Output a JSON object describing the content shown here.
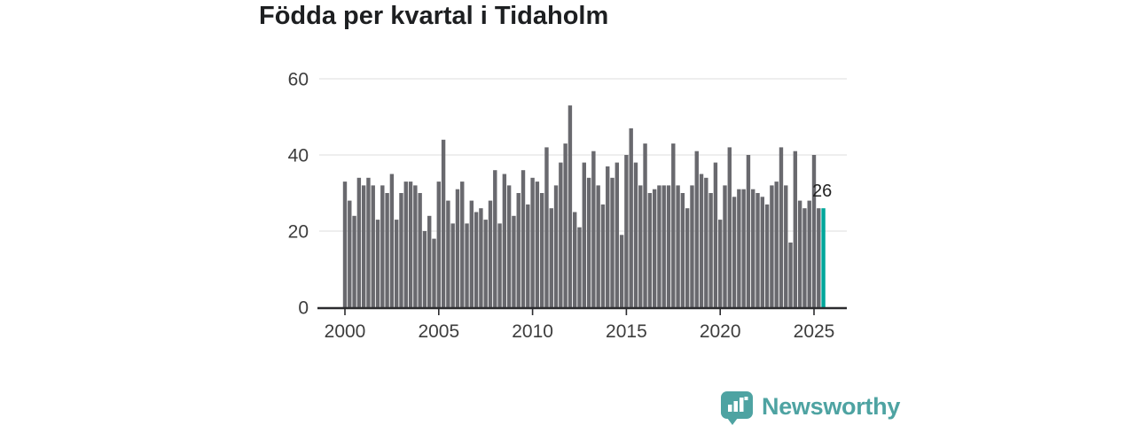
{
  "title": "Födda per kvartal i Tidaholm",
  "annotation": {
    "text": "26"
  },
  "colors": {
    "bar": "#69696e",
    "highlight": "#00a79b",
    "grid": "#e3e3e3",
    "axis": "#2b2b2e",
    "tick_label": "#3d3d3d",
    "annotation": "#232323",
    "logo": "#4ea3a2"
  },
  "chart_data": {
    "type": "bar",
    "title": "Födda per kvartal i Tidaholm",
    "xlabel": "",
    "ylabel": "",
    "ylim": [
      0,
      64
    ],
    "grid": true,
    "legend_position": "none",
    "y_ticks": [
      "0",
      "20",
      "40",
      "60"
    ],
    "x_ticks": [
      "2000",
      "2005",
      "2010",
      "2015",
      "2020",
      "2025"
    ],
    "x_tick_every_n_bars": 20,
    "highlight": {
      "index": 102,
      "label": "26"
    },
    "categories": [
      "2000 K1",
      "2000 K2",
      "2000 K3",
      "2000 K4",
      "2001 K1",
      "2001 K2",
      "2001 K3",
      "2001 K4",
      "2002 K1",
      "2002 K2",
      "2002 K3",
      "2002 K4",
      "2003 K1",
      "2003 K2",
      "2003 K3",
      "2003 K4",
      "2004 K1",
      "2004 K2",
      "2004 K3",
      "2004 K4",
      "2005 K1",
      "2005 K2",
      "2005 K3",
      "2005 K4",
      "2006 K1",
      "2006 K2",
      "2006 K3",
      "2006 K4",
      "2007 K1",
      "2007 K2",
      "2007 K3",
      "2007 K4",
      "2008 K1",
      "2008 K2",
      "2008 K3",
      "2008 K4",
      "2009 K1",
      "2009 K2",
      "2009 K3",
      "2009 K4",
      "2010 K1",
      "2010 K2",
      "2010 K3",
      "2010 K4",
      "2011 K1",
      "2011 K2",
      "2011 K3",
      "2011 K4",
      "2012 K1",
      "2012 K2",
      "2012 K3",
      "2012 K4",
      "2013 K1",
      "2013 K2",
      "2013 K3",
      "2013 K4",
      "2014 K1",
      "2014 K2",
      "2014 K3",
      "2014 K4",
      "2015 K1",
      "2015 K2",
      "2015 K3",
      "2015 K4",
      "2016 K1",
      "2016 K2",
      "2016 K3",
      "2016 K4",
      "2017 K1",
      "2017 K2",
      "2017 K3",
      "2017 K4",
      "2018 K1",
      "2018 K2",
      "2018 K3",
      "2018 K4",
      "2019 K1",
      "2019 K2",
      "2019 K3",
      "2019 K4",
      "2020 K1",
      "2020 K2",
      "2020 K3",
      "2020 K4",
      "2021 K1",
      "2021 K2",
      "2021 K3",
      "2021 K4",
      "2022 K1",
      "2022 K2",
      "2022 K3",
      "2022 K4",
      "2023 K1",
      "2023 K2",
      "2023 K3",
      "2023 K4",
      "2024 K1",
      "2024 K2",
      "2024 K3",
      "2024 K4",
      "2025 K1",
      "2025 K2",
      "2025 K3"
    ],
    "values": [
      33,
      28,
      24,
      34,
      32,
      34,
      32,
      23,
      32,
      30,
      35,
      23,
      30,
      33,
      33,
      32,
      30,
      20,
      24,
      18,
      33,
      44,
      28,
      22,
      31,
      33,
      22,
      28,
      25,
      26,
      23,
      28,
      36,
      22,
      35,
      32,
      24,
      30,
      36,
      27,
      34,
      33,
      30,
      42,
      26,
      32,
      38,
      43,
      53,
      25,
      21,
      38,
      34,
      41,
      32,
      27,
      37,
      34,
      38,
      19,
      40,
      47,
      38,
      32,
      43,
      30,
      31,
      32,
      32,
      32,
      43,
      32,
      30,
      26,
      32,
      41,
      35,
      34,
      30,
      38,
      23,
      32,
      42,
      29,
      31,
      31,
      40,
      31,
      30,
      29,
      27,
      32,
      33,
      42,
      32,
      17,
      41,
      28,
      26,
      28,
      40,
      26,
      26
    ]
  },
  "logo": {
    "text": "Newsworthy",
    "icon": "newsworthy-speech-bubble-chart-icon"
  }
}
